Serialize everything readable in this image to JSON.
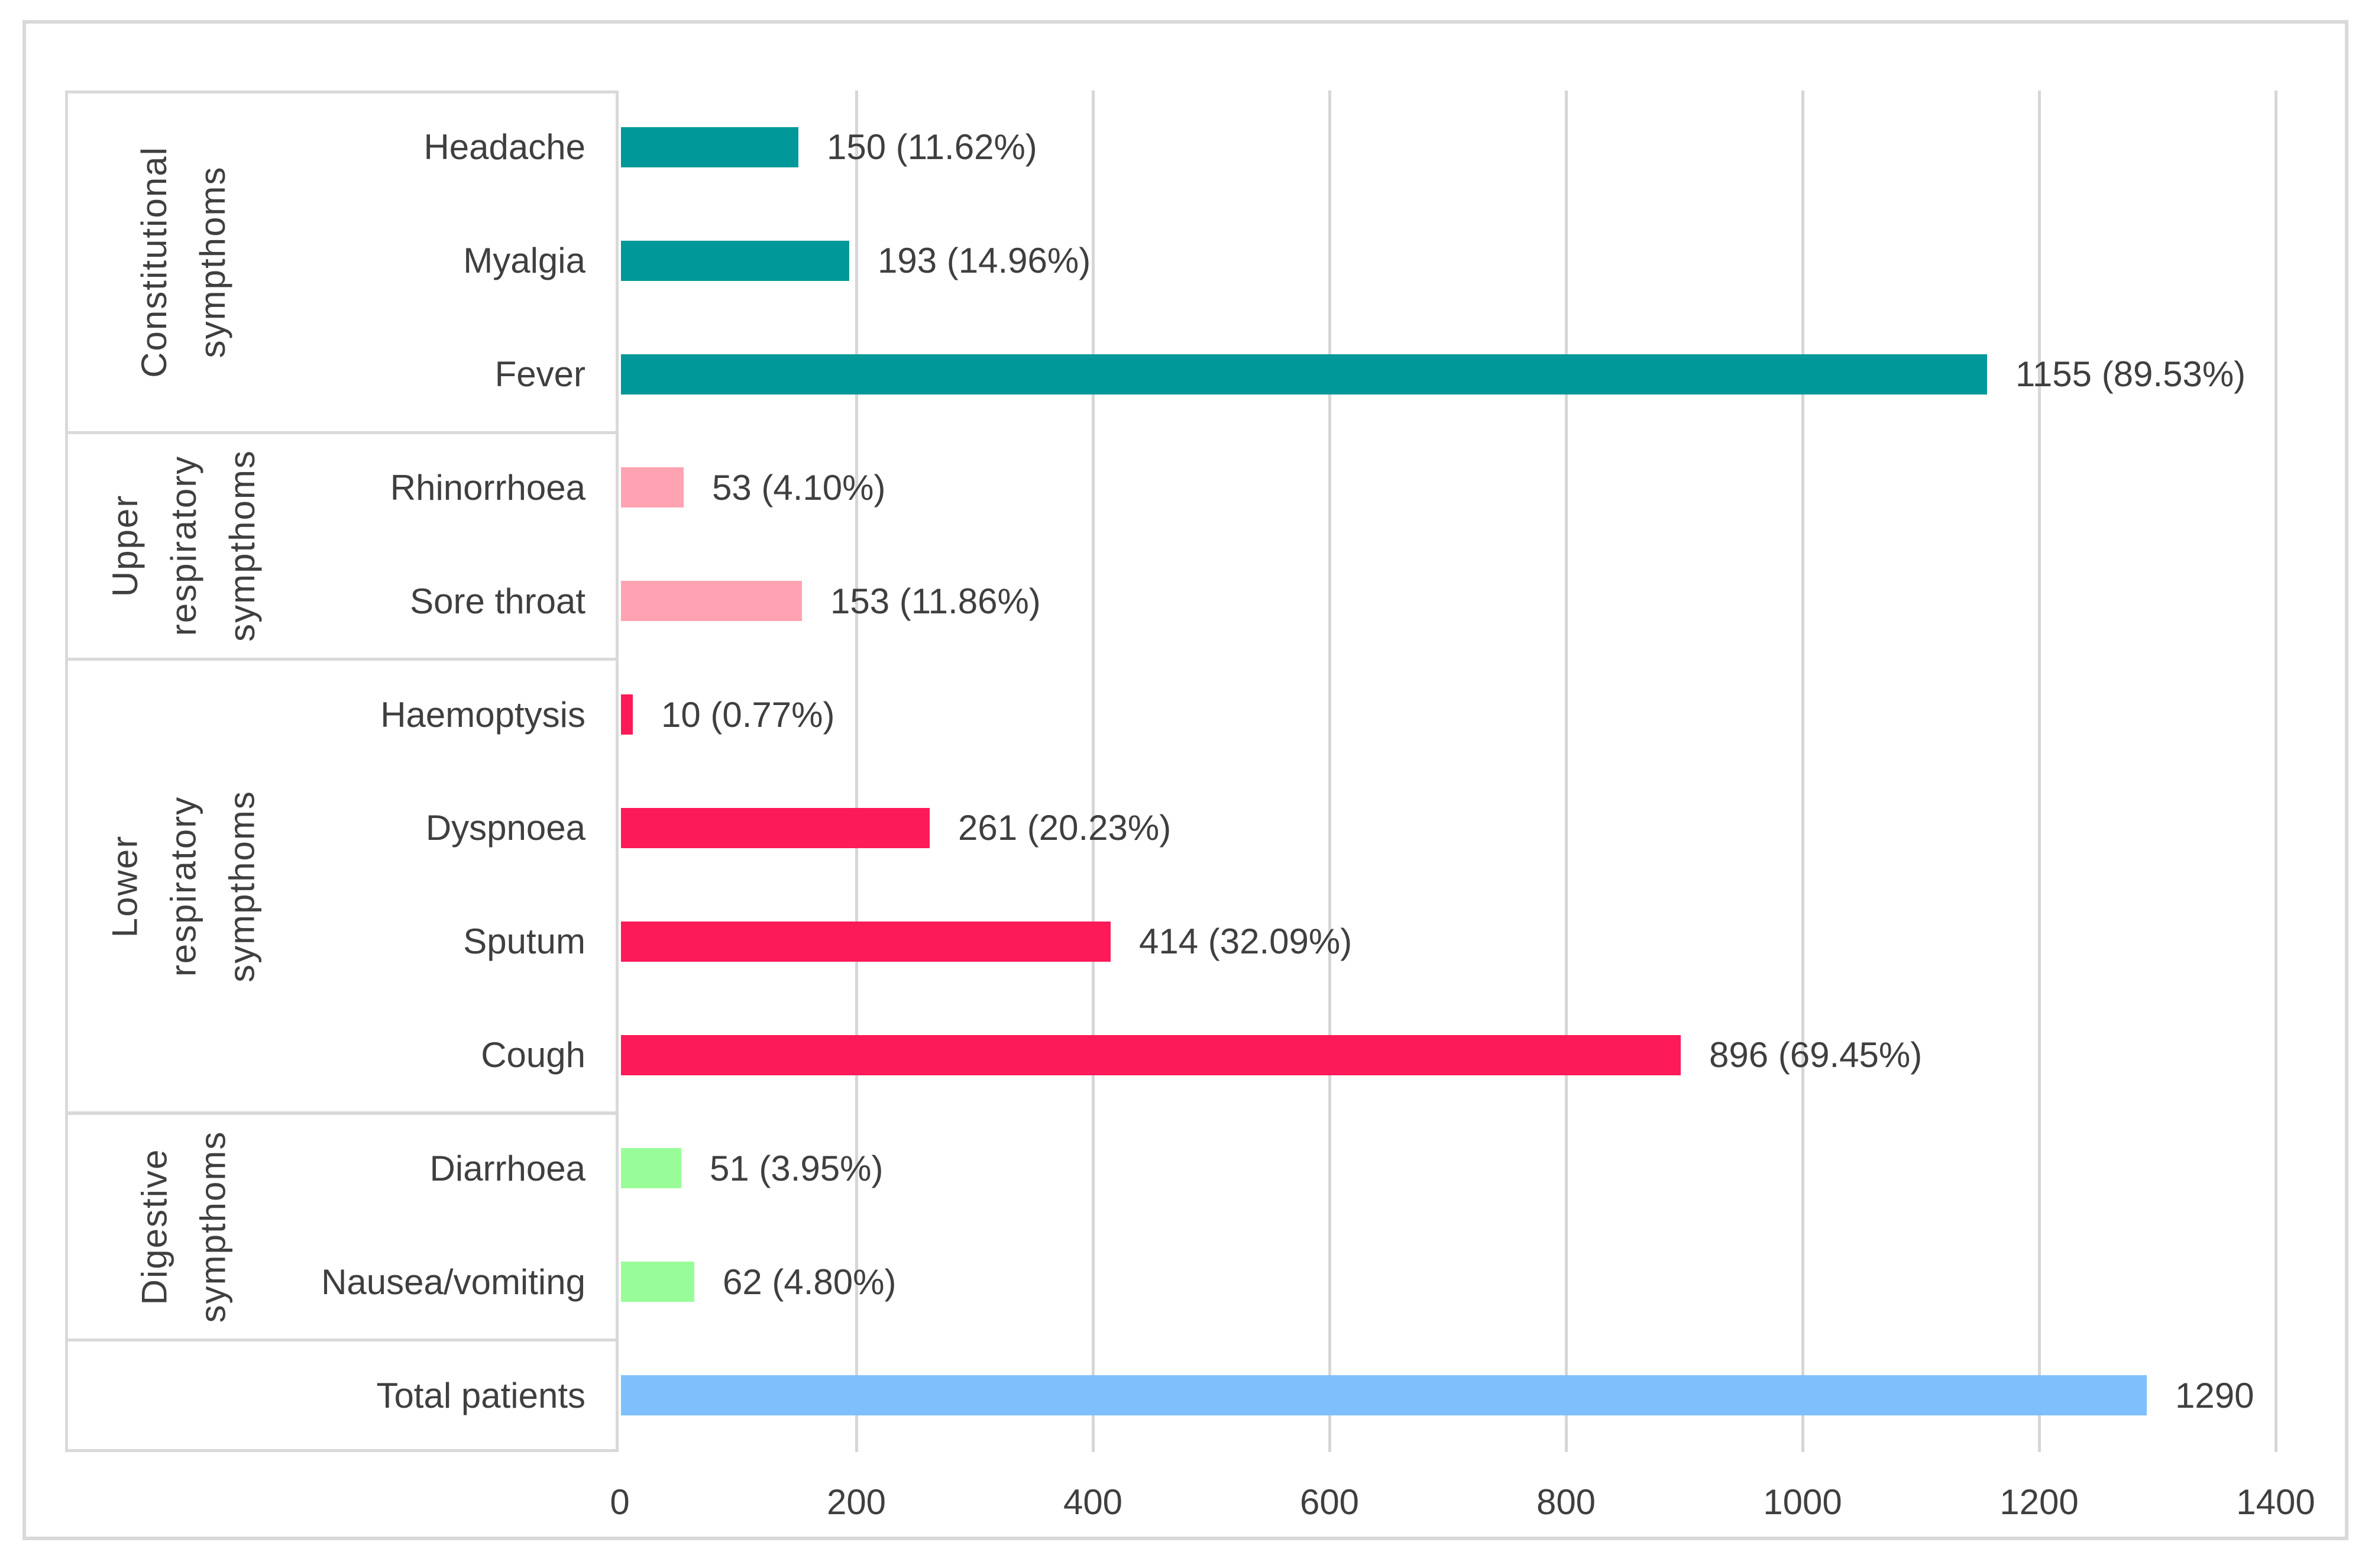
{
  "figure": {
    "background": "#FFFFFF",
    "border_color": "#D9D9D9",
    "gridline_color": "#D6D6D6",
    "text_color": "#3F3F3F"
  },
  "chart_data": {
    "type": "bar",
    "orientation": "horizontal",
    "title": "",
    "xlabel": "",
    "ylabel": "",
    "x_axis": {
      "min": 0,
      "max": 1400,
      "tick_step": 200,
      "tick_labels": [
        "0",
        "200",
        "400",
        "600",
        "800",
        "1000",
        "1200",
        "1400"
      ],
      "grid": true
    },
    "groups": [
      {
        "label_lines": [
          "Constitutional",
          "sympthoms"
        ],
        "color": "#009898",
        "row_count": 3
      },
      {
        "label_lines": [
          "Upper",
          "respiratory",
          "sympthoms"
        ],
        "color": "#FFA3B2",
        "row_count": 2
      },
      {
        "label_lines": [
          "Lower respiratory",
          "sympthoms"
        ],
        "color": "#FC1A58",
        "row_count": 4
      },
      {
        "label_lines": [
          "Digestive",
          "sympthoms"
        ],
        "color": "#98FD98",
        "row_count": 2
      },
      {
        "label_lines": [],
        "color": "#7EC0FB",
        "row_count": 1
      }
    ],
    "rows": [
      {
        "category": "Headache",
        "value": 150,
        "data_label": "150 (11.62%)",
        "group": 0
      },
      {
        "category": "Myalgia",
        "value": 193,
        "data_label": "193 (14.96%)",
        "group": 0
      },
      {
        "category": "Fever",
        "value": 1155,
        "data_label": "1155 (89.53%)",
        "group": 0
      },
      {
        "category": "Rhinorrhoea",
        "value": 53,
        "data_label": "53 (4.10%)",
        "group": 1
      },
      {
        "category": "Sore throat",
        "value": 153,
        "data_label": "153 (11.86%)",
        "group": 1
      },
      {
        "category": "Haemoptysis",
        "value": 10,
        "data_label": "10 (0.77%)",
        "group": 2
      },
      {
        "category": "Dyspnoea",
        "value": 261,
        "data_label": "261 (20.23%)",
        "group": 2
      },
      {
        "category": "Sputum",
        "value": 414,
        "data_label": "414 (32.09%)",
        "group": 2
      },
      {
        "category": "Cough",
        "value": 896,
        "data_label": "896 (69.45%)",
        "group": 2
      },
      {
        "category": "Diarrhoea",
        "value": 51,
        "data_label": "51 (3.95%)",
        "group": 3
      },
      {
        "category": "Nausea/vomiting",
        "value": 62,
        "data_label": "62 (4.80%)",
        "group": 3
      },
      {
        "category": "Total patients",
        "value": 1290,
        "data_label": "1290",
        "group": 4
      }
    ]
  }
}
